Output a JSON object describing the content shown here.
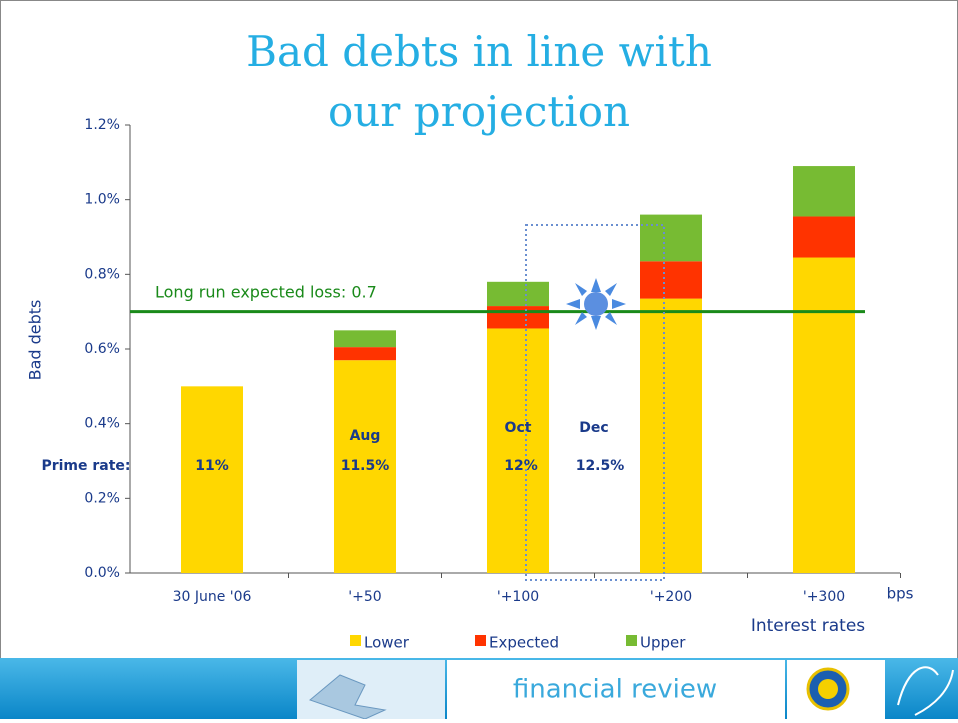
{
  "chart_data": {
    "type": "stacked_bar",
    "title": [
      "Bad debts in line with",
      "our projection"
    ],
    "y_label": "Bad debts",
    "x_label": "Interest rates",
    "x_unit": "bps",
    "categories": [
      "30 June '06",
      "'+50",
      "'+100",
      "'+200",
      "'+300"
    ],
    "series": [
      {
        "name": "Lower",
        "color": "#ffd700",
        "values": [
          0.5,
          0.57,
          0.655,
          0.735,
          0.845
        ]
      },
      {
        "name": "Expected",
        "color": "#ff3300",
        "values": [
          null,
          0.035,
          0.06,
          0.1,
          0.11
        ]
      },
      {
        "name": "Upper",
        "color": "#77bb33",
        "values": [
          null,
          0.045,
          0.065,
          0.125,
          0.135
        ]
      }
    ],
    "ylim": [
      0,
      1.2
    ],
    "yticks": [
      {
        "value": 0,
        "label": "0.0%"
      },
      {
        "value": 0.2,
        "label": "0.2%"
      },
      {
        "value": 0.4,
        "label": "0.4%"
      },
      {
        "value": 0.6,
        "label": "0.6%"
      },
      {
        "value": 0.8,
        "label": "0.8%"
      },
      {
        "value": 1.0,
        "label": "1.0%"
      },
      {
        "value": 1.2,
        "label": "1.2%"
      }
    ],
    "reference_line": {
      "value": 0.7,
      "label": "Long run expected loss: 0.7",
      "color": "#1a8a1a"
    },
    "annotations": [
      "Prime rate:",
      "11%",
      "Aug",
      "11.5%",
      "Oct",
      "12%",
      "Dec",
      "12.5%"
    ],
    "legend": "bottom"
  },
  "footer": {
    "text": "financial review"
  }
}
